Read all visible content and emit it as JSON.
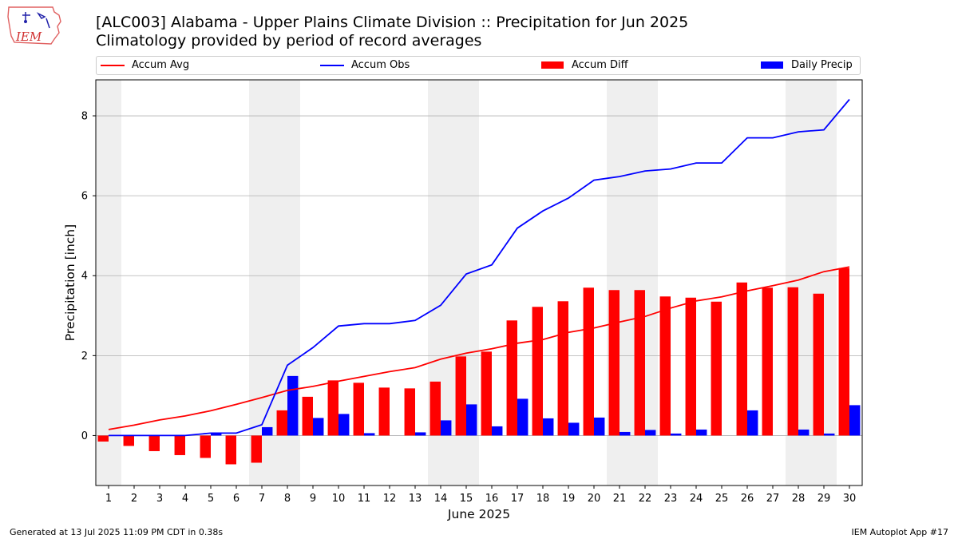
{
  "header": {
    "title": "[ALC003] Alabama - Upper Plains Climate Division :: Precipitation for Jun 2025",
    "subtitle": "Climatology provided by period of record averages",
    "logo_text": "IEM"
  },
  "footer": {
    "left": "Generated at 13 Jul 2025 11:09 PM CDT in 0.38s",
    "right": "IEM Autoplot App #17"
  },
  "colors": {
    "avg": "#ff0000",
    "obs": "#0000ff",
    "diff": "#ff0000",
    "daily": "#0000ff",
    "weekend_shade": "#efefef",
    "grid": "#b0b0b0"
  },
  "chart_data": {
    "type": "bar",
    "xlabel": "June 2025",
    "ylabel": "Precipitation [inch]",
    "ylim": [
      -1.25,
      8.9
    ],
    "yticks": [
      0,
      2,
      4,
      6,
      8
    ],
    "x": [
      1,
      2,
      3,
      4,
      5,
      6,
      7,
      8,
      9,
      10,
      11,
      12,
      13,
      14,
      15,
      16,
      17,
      18,
      19,
      20,
      21,
      22,
      23,
      24,
      25,
      26,
      27,
      28,
      29,
      30
    ],
    "grid": "horizontal",
    "legend_placement": "top",
    "weekend_days": [
      1,
      7,
      8,
      14,
      15,
      21,
      22,
      28,
      29
    ],
    "legend": [
      "Accum Avg",
      "Accum Obs",
      "Accum Diff",
      "Daily Precip"
    ],
    "series": [
      {
        "name": "Accum Avg",
        "kind": "line",
        "values": [
          0.15,
          0.26,
          0.39,
          0.49,
          0.62,
          0.78,
          0.95,
          1.13,
          1.23,
          1.36,
          1.48,
          1.6,
          1.7,
          1.91,
          2.06,
          2.17,
          2.31,
          2.4,
          2.58,
          2.69,
          2.84,
          2.98,
          3.19,
          3.37,
          3.47,
          3.62,
          3.75,
          3.89,
          4.1,
          4.22
        ]
      },
      {
        "name": "Accum Obs",
        "kind": "line",
        "values": [
          0,
          0,
          0,
          0,
          0.06,
          0.06,
          0.27,
          1.76,
          2.2,
          2.74,
          2.8,
          2.8,
          2.88,
          3.26,
          4.04,
          4.27,
          5.19,
          5.62,
          5.94,
          6.39,
          6.48,
          6.62,
          6.67,
          6.82,
          6.82,
          7.45,
          7.45,
          7.6,
          7.65,
          8.41
        ]
      },
      {
        "name": "Accum Diff",
        "kind": "bar",
        "values": [
          -0.15,
          -0.26,
          -0.39,
          -0.49,
          -0.56,
          -0.72,
          -0.68,
          0.63,
          0.97,
          1.38,
          1.32,
          1.2,
          1.18,
          1.35,
          1.98,
          2.1,
          2.88,
          3.22,
          3.36,
          3.7,
          3.64,
          3.64,
          3.48,
          3.45,
          3.35,
          3.83,
          3.7,
          3.71,
          3.55,
          4.19
        ]
      },
      {
        "name": "Daily Precip",
        "kind": "bar",
        "values": [
          0,
          0,
          0,
          0,
          0.06,
          0,
          0.21,
          1.49,
          0.44,
          0.54,
          0.06,
          0,
          0.08,
          0.38,
          0.78,
          0.23,
          0.92,
          0.43,
          0.32,
          0.45,
          0.09,
          0.14,
          0.05,
          0.15,
          0,
          0.63,
          0,
          0.15,
          0.05,
          0.76
        ]
      }
    ]
  }
}
